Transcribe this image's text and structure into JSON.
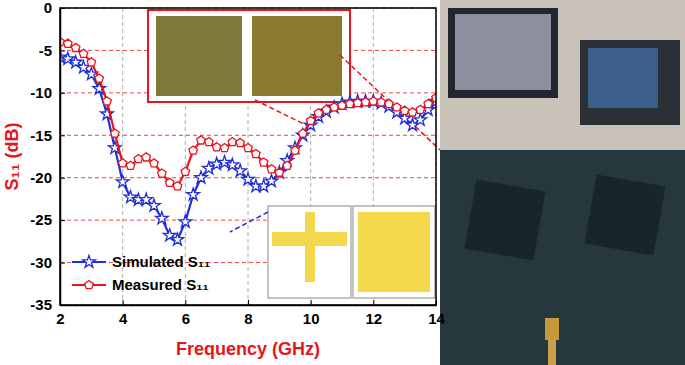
{
  "chart_data": {
    "type": "line",
    "x_label": "Frequency (GHz)",
    "y_label": "S₁₁ (dB)",
    "x": [
      2,
      2.25,
      2.5,
      2.75,
      3,
      3.25,
      3.5,
      3.75,
      4,
      4.25,
      4.5,
      4.75,
      5,
      5.25,
      5.5,
      5.75,
      6,
      6.25,
      6.5,
      6.75,
      7,
      7.25,
      7.5,
      7.75,
      8,
      8.25,
      8.5,
      8.75,
      9,
      9.25,
      9.5,
      9.75,
      10,
      10.25,
      10.5,
      10.75,
      11,
      11.25,
      11.5,
      11.75,
      12,
      12.25,
      12.5,
      12.75,
      13,
      13.25,
      13.5,
      13.75,
      14
    ],
    "series": [
      {
        "name": "Simulated S₁₁",
        "color": "#1f2fd6",
        "marker": "star",
        "line_style": "solid",
        "values": [
          -5.8,
          -6,
          -6.4,
          -7,
          -7.8,
          -9.5,
          -12.5,
          -16.5,
          -20.5,
          -22.3,
          -22.6,
          -22.6,
          -23.3,
          -24.8,
          -26.8,
          -27.3,
          -25.2,
          -22,
          -20,
          -18.9,
          -18.4,
          -18.2,
          -18.5,
          -19.2,
          -20.2,
          -21,
          -21,
          -20.4,
          -19.4,
          -18,
          -16.5,
          -15,
          -13.8,
          -12.8,
          -12.2,
          -11.7,
          -11.3,
          -11.1,
          -11,
          -11,
          -11,
          -11.2,
          -11.6,
          -12.3,
          -13,
          -13.8,
          -13.2,
          -12,
          -11
        ]
      },
      {
        "name": "Measured S₁₁",
        "color": "#e8141a",
        "marker": "pentagon",
        "line_style": "solid",
        "values": [
          -4,
          -4.2,
          -4.7,
          -5.4,
          -6.4,
          -8.3,
          -11,
          -14.8,
          -18.3,
          -18.6,
          -17.8,
          -17.6,
          -18.3,
          -19.5,
          -20.6,
          -21,
          -19.3,
          -16.8,
          -15.6,
          -15.8,
          -16.4,
          -16.5,
          -15.8,
          -15.9,
          -16.5,
          -17.2,
          -18.2,
          -19,
          -19.4,
          -18.6,
          -16.8,
          -14.8,
          -13.3,
          -12.4,
          -12,
          -11.7,
          -11.5,
          -11.3,
          -11.2,
          -11.1,
          -11,
          -11.1,
          -11.3,
          -11.7,
          -12.1,
          -12.3,
          -12,
          -11.3,
          -10.6
        ]
      }
    ],
    "xlim": [
      2,
      14
    ],
    "xticks": [
      2,
      4,
      6,
      8,
      10,
      12,
      14
    ],
    "ylim": [
      -35,
      0
    ],
    "yticks": [
      0,
      -5,
      -10,
      -15,
      -20,
      -25,
      -30,
      -35
    ],
    "grid": true,
    "legend": "lower left"
  }
}
